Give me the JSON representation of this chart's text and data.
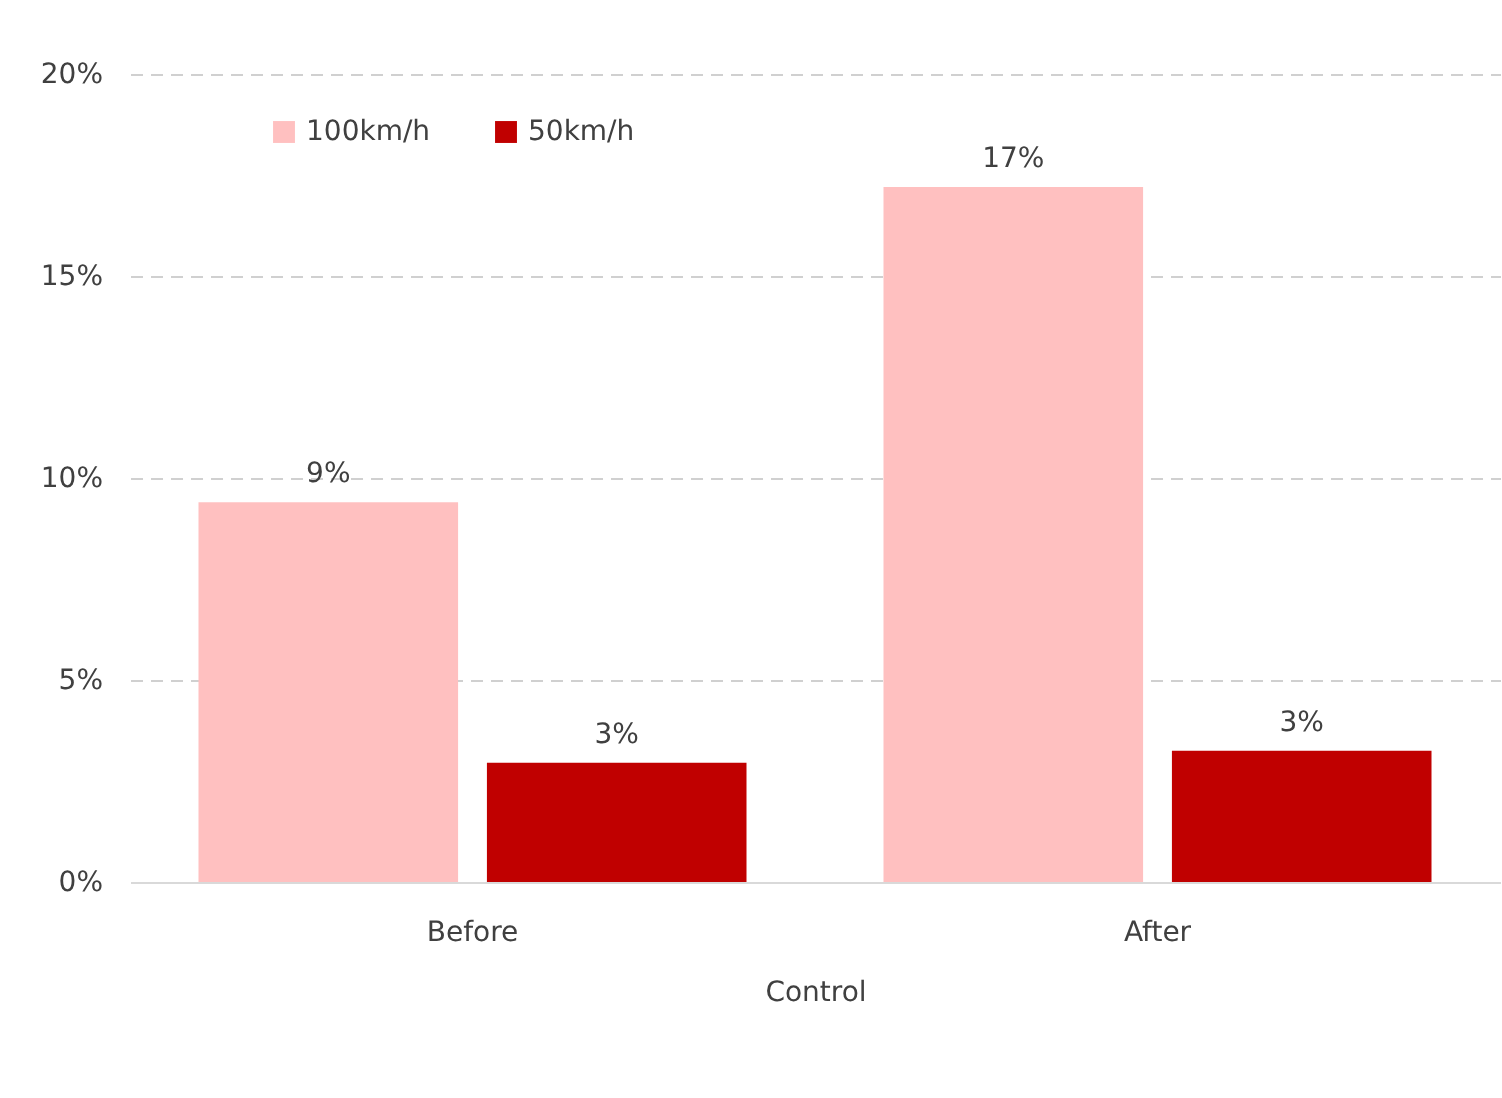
{
  "chart_data": {
    "type": "bar",
    "xlabel": "Control",
    "categories": [
      "Before",
      "After"
    ],
    "series": [
      {
        "name": "100km/h",
        "color": "#ffc0c0",
        "values": [
          9.4,
          17.2
        ],
        "value_labels": [
          "9%",
          "17%"
        ]
      },
      {
        "name": "50km/h",
        "color": "#c00000",
        "values": [
          2.95,
          3.25
        ],
        "value_labels": [
          "3%",
          "3%"
        ]
      }
    ],
    "ylim": [
      0,
      20
    ],
    "yticks": [
      {
        "value": 0,
        "label": "0%"
      },
      {
        "value": 5,
        "label": "5%"
      },
      {
        "value": 10,
        "label": "10%"
      },
      {
        "value": 15,
        "label": "15%"
      },
      {
        "value": 20,
        "label": "20%"
      }
    ],
    "grid": "y",
    "legend": "top left"
  }
}
